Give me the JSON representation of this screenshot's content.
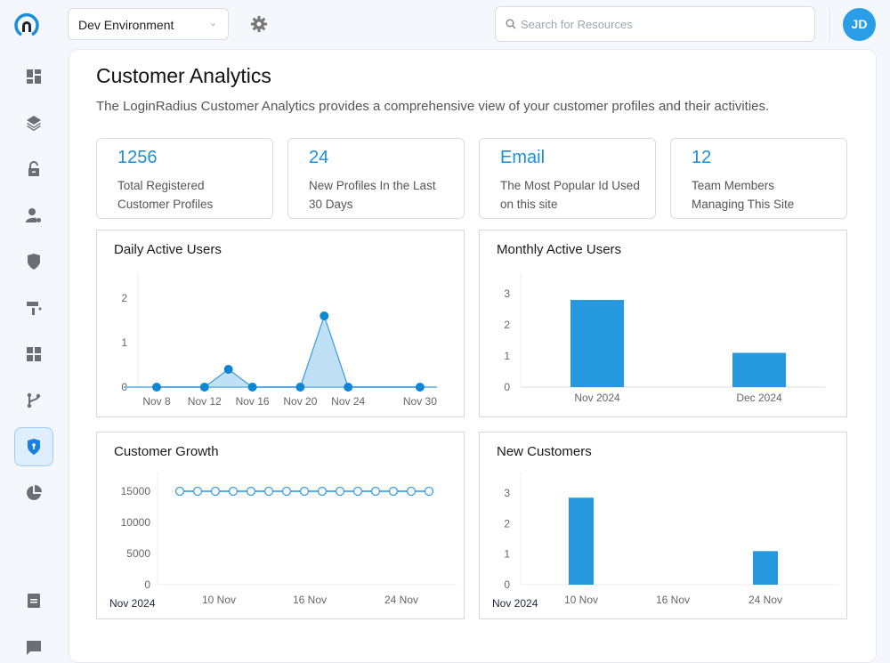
{
  "header": {
    "environment": "Dev Environment",
    "search_placeholder": "Search for Resources",
    "avatar_initials": "JD"
  },
  "sidebar": {
    "items": [
      {
        "icon": "dashboard-icon"
      },
      {
        "icon": "layers-icon"
      },
      {
        "icon": "unlock-icon"
      },
      {
        "icon": "user-settings-icon"
      },
      {
        "icon": "shield-icon"
      },
      {
        "icon": "paint-roller-icon"
      },
      {
        "icon": "apps-grid-icon"
      },
      {
        "icon": "branch-icon"
      },
      {
        "icon": "shield-lock-icon",
        "active": true
      },
      {
        "icon": "pie-chart-icon"
      },
      {
        "icon": "document-icon"
      },
      {
        "icon": "chat-icon"
      }
    ]
  },
  "page": {
    "title": "Customer Analytics",
    "description": "The LoginRadius Customer Analytics provides a comprehensive view of your customer profiles and their activities."
  },
  "stats": [
    {
      "value": "1256",
      "label": "Total Registered Customer Profiles"
    },
    {
      "value": "24",
      "label": "New Profiles In the Last 30 Days"
    },
    {
      "value": "Email",
      "label": "The Most Popular Id Used on this site"
    },
    {
      "value": "12",
      "label": "Team Members Managing This Site"
    }
  ],
  "colors": {
    "accent": "#1a8ed8",
    "bar": "#2598de",
    "area": "#bfe0f5",
    "avatar": "#2b9de6"
  },
  "chart_data": [
    {
      "type": "area",
      "title": "Daily Active Users",
      "x": [
        "Nov 8",
        "Nov 12",
        "Nov 14",
        "Nov 16",
        "Nov 20",
        "Nov 22",
        "Nov 24",
        "Nov 30"
      ],
      "values": [
        0,
        0,
        0.4,
        0,
        0,
        1.6,
        0,
        0
      ],
      "xticks": [
        "Nov 8",
        "Nov 12",
        "Nov 16",
        "Nov 20",
        "Nov 24",
        "Nov 30"
      ],
      "yticks": [
        "0",
        "1",
        "2"
      ],
      "ylim": [
        0,
        2.5
      ]
    },
    {
      "type": "bar",
      "title": "Monthly Active Users",
      "categories": [
        "Nov 2024",
        "Dec 2024"
      ],
      "values": [
        2.8,
        1.1
      ],
      "yticks": [
        "0",
        "1",
        "2",
        "3"
      ],
      "ylim": [
        0,
        3.5
      ]
    },
    {
      "type": "line",
      "title": "Customer Growth",
      "values": [
        15000,
        15000,
        15000,
        15000,
        15000,
        15000,
        15000,
        15000,
        15000,
        15000,
        15000,
        15000,
        15000,
        15000,
        15000
      ],
      "xticks": [
        "10 Nov",
        "16 Nov",
        "24 Nov"
      ],
      "period": "Nov 2024",
      "yticks": [
        "0",
        "5000",
        "10000",
        "15000"
      ],
      "ylim": [
        0,
        15000
      ]
    },
    {
      "type": "bar",
      "title": "New Customers",
      "categories": [
        "10 Nov",
        "16 Nov",
        "24 Nov"
      ],
      "values": [
        2.85,
        0,
        1.1
      ],
      "period": "Nov 2024",
      "yticks": [
        "0",
        "1",
        "2",
        "3"
      ],
      "ylim": [
        0,
        3.5
      ]
    }
  ]
}
